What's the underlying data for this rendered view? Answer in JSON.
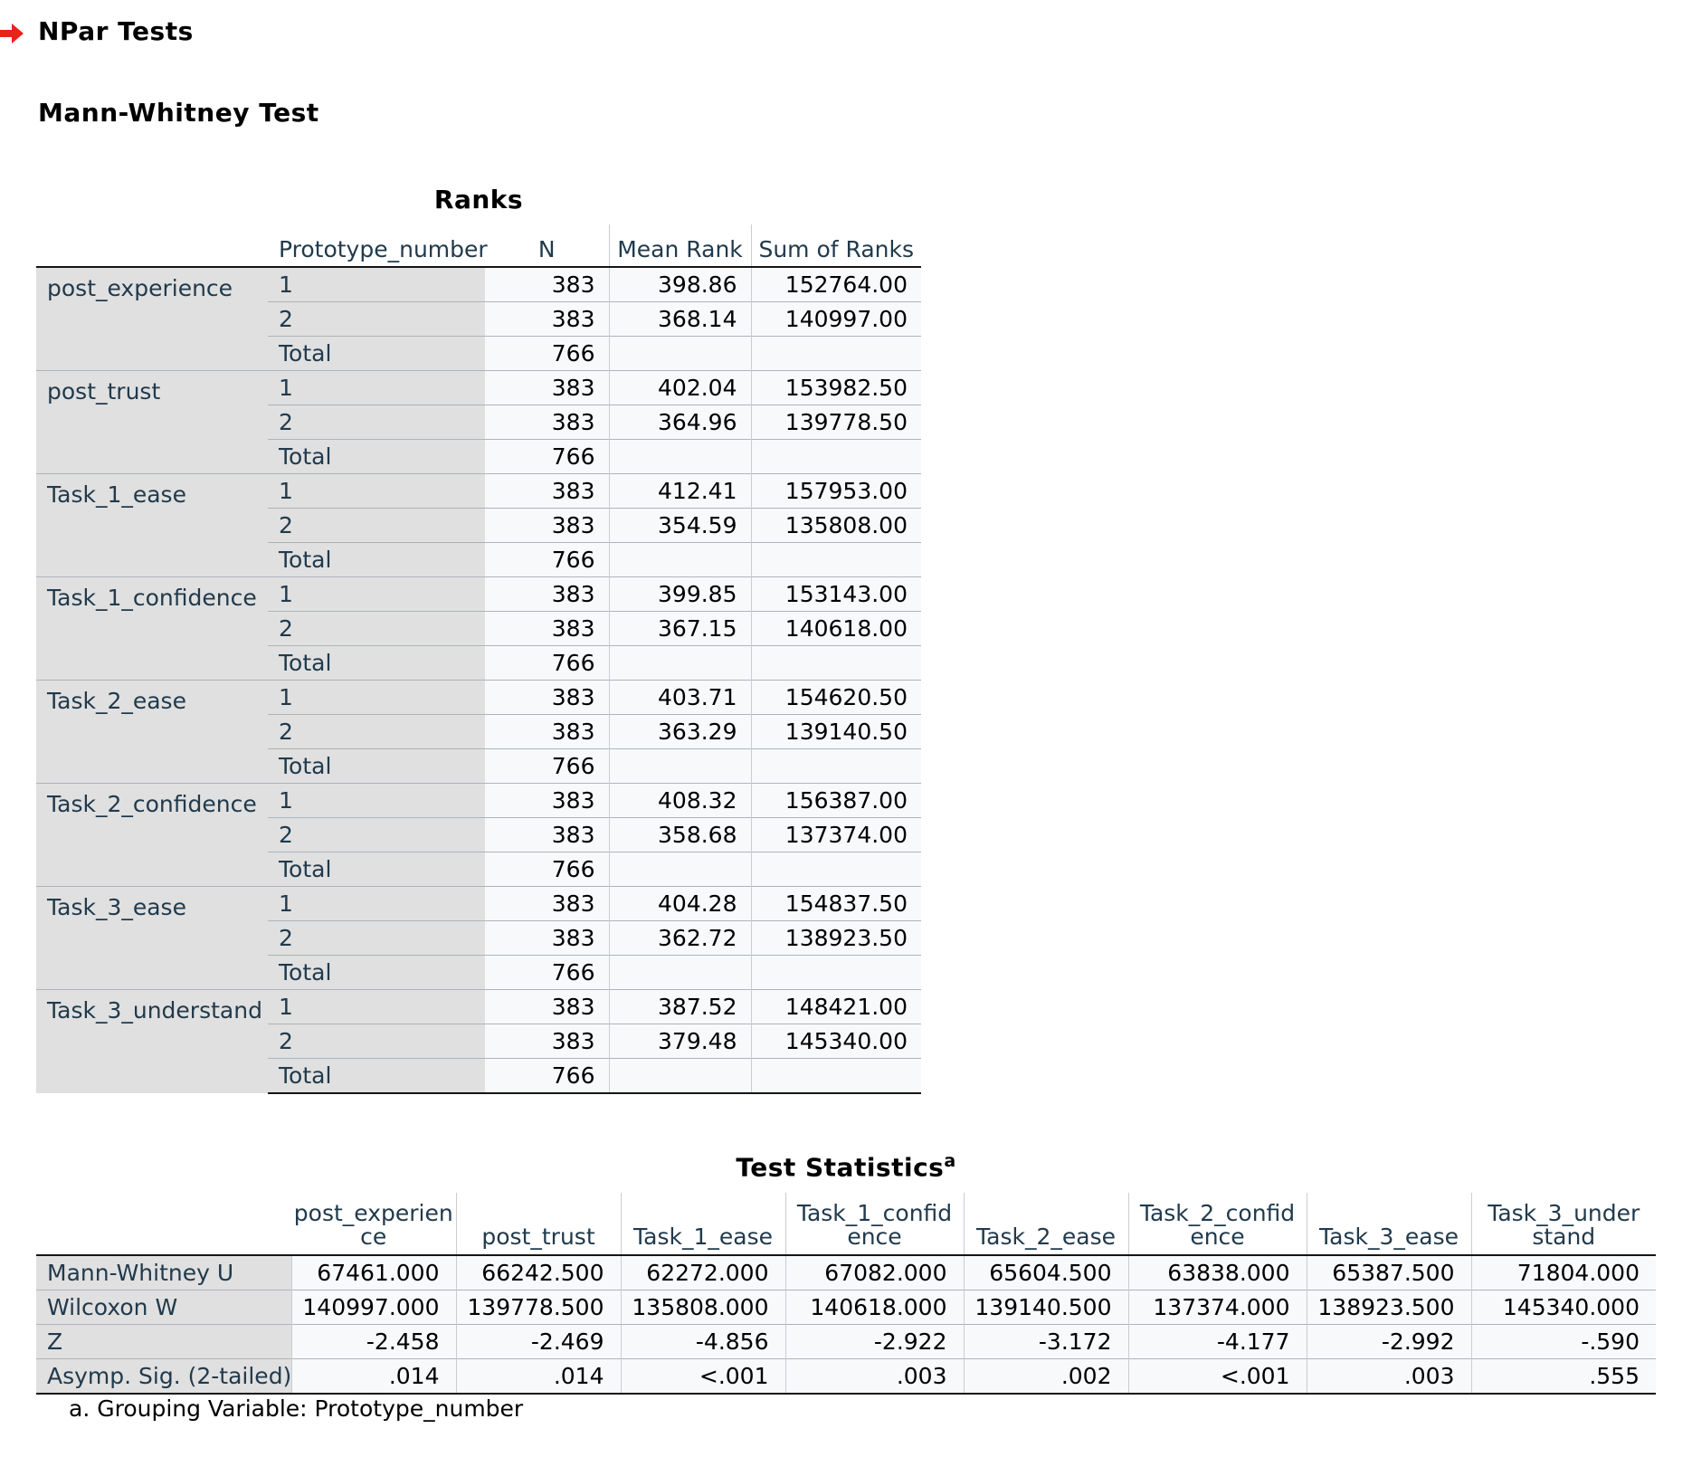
{
  "headings": {
    "npar": "NPar Tests",
    "test": "Mann-Whitney Test"
  },
  "ranks": {
    "title": "Ranks",
    "col_group": "Prototype_number",
    "col_n": "N",
    "col_mean": "Mean Rank",
    "col_sum": "Sum of Ranks",
    "variables": [
      {
        "name": "post_experience",
        "rows": [
          {
            "group": "1",
            "n": "383",
            "mean": "398.86",
            "sum": "152764.00"
          },
          {
            "group": "2",
            "n": "383",
            "mean": "368.14",
            "sum": "140997.00"
          },
          {
            "group": "Total",
            "n": "766",
            "mean": "",
            "sum": ""
          }
        ]
      },
      {
        "name": "post_trust",
        "rows": [
          {
            "group": "1",
            "n": "383",
            "mean": "402.04",
            "sum": "153982.50"
          },
          {
            "group": "2",
            "n": "383",
            "mean": "364.96",
            "sum": "139778.50"
          },
          {
            "group": "Total",
            "n": "766",
            "mean": "",
            "sum": ""
          }
        ]
      },
      {
        "name": "Task_1_ease",
        "rows": [
          {
            "group": "1",
            "n": "383",
            "mean": "412.41",
            "sum": "157953.00"
          },
          {
            "group": "2",
            "n": "383",
            "mean": "354.59",
            "sum": "135808.00"
          },
          {
            "group": "Total",
            "n": "766",
            "mean": "",
            "sum": ""
          }
        ]
      },
      {
        "name": "Task_1_confidence",
        "rows": [
          {
            "group": "1",
            "n": "383",
            "mean": "399.85",
            "sum": "153143.00"
          },
          {
            "group": "2",
            "n": "383",
            "mean": "367.15",
            "sum": "140618.00"
          },
          {
            "group": "Total",
            "n": "766",
            "mean": "",
            "sum": ""
          }
        ]
      },
      {
        "name": "Task_2_ease",
        "rows": [
          {
            "group": "1",
            "n": "383",
            "mean": "403.71",
            "sum": "154620.50"
          },
          {
            "group": "2",
            "n": "383",
            "mean": "363.29",
            "sum": "139140.50"
          },
          {
            "group": "Total",
            "n": "766",
            "mean": "",
            "sum": ""
          }
        ]
      },
      {
        "name": "Task_2_confidence",
        "rows": [
          {
            "group": "1",
            "n": "383",
            "mean": "408.32",
            "sum": "156387.00"
          },
          {
            "group": "2",
            "n": "383",
            "mean": "358.68",
            "sum": "137374.00"
          },
          {
            "group": "Total",
            "n": "766",
            "mean": "",
            "sum": ""
          }
        ]
      },
      {
        "name": "Task_3_ease",
        "rows": [
          {
            "group": "1",
            "n": "383",
            "mean": "404.28",
            "sum": "154837.50"
          },
          {
            "group": "2",
            "n": "383",
            "mean": "362.72",
            "sum": "138923.50"
          },
          {
            "group": "Total",
            "n": "766",
            "mean": "",
            "sum": ""
          }
        ]
      },
      {
        "name": "Task_3_understand",
        "rows": [
          {
            "group": "1",
            "n": "383",
            "mean": "387.52",
            "sum": "148421.00"
          },
          {
            "group": "2",
            "n": "383",
            "mean": "379.48",
            "sum": "145340.00"
          },
          {
            "group": "Total",
            "n": "766",
            "mean": "",
            "sum": ""
          }
        ]
      }
    ]
  },
  "stats": {
    "title": "Test Statistics",
    "title_sup": "a",
    "columns": [
      [
        "post_experien",
        "ce"
      ],
      [
        "",
        "post_trust"
      ],
      [
        "",
        "Task_1_ease"
      ],
      [
        "Task_1_confid",
        "ence"
      ],
      [
        "",
        "Task_2_ease"
      ],
      [
        "Task_2_confid",
        "ence"
      ],
      [
        "",
        "Task_3_ease"
      ],
      [
        "Task_3_under",
        "stand"
      ]
    ],
    "rows": [
      {
        "label": "Mann-Whitney U",
        "values": [
          "67461.000",
          "66242.500",
          "62272.000",
          "67082.000",
          "65604.500",
          "63838.000",
          "65387.500",
          "71804.000"
        ]
      },
      {
        "label": "Wilcoxon W",
        "values": [
          "140997.000",
          "139778.500",
          "135808.000",
          "140618.000",
          "139140.500",
          "137374.000",
          "138923.500",
          "145340.000"
        ]
      },
      {
        "label": "Z",
        "values": [
          "-2.458",
          "-2.469",
          "-4.856",
          "-2.922",
          "-3.172",
          "-4.177",
          "-2.992",
          "-.590"
        ]
      },
      {
        "label": "Asymp. Sig. (2-tailed)",
        "values": [
          ".014",
          ".014",
          "<.001",
          ".003",
          ".002",
          "<.001",
          ".003",
          ".555"
        ]
      }
    ],
    "footnote": "a. Grouping Variable: Prototype_number"
  },
  "colors": {
    "arrow": "#e8231b",
    "label_text": "#213a4c",
    "label_bg": "#e0e0e0",
    "cell_bg": "#f8f9fb"
  }
}
